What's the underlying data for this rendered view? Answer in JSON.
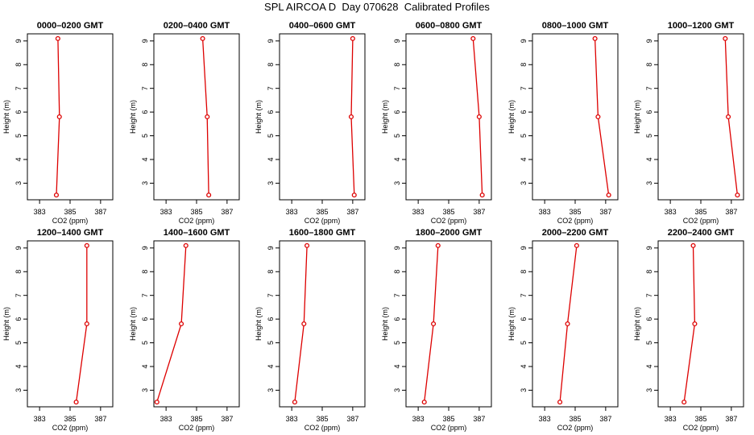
{
  "figure": {
    "title": "SPL AIRCOA D  Day 070628  Calibrated Profiles"
  },
  "colors": {
    "profile": "#dd0000",
    "axes": "#000000"
  },
  "chart_data": [
    {
      "type": "line",
      "title": "0000–0200 GMT",
      "xlabel": "CO2 (ppm)",
      "ylabel": "Height (m)",
      "xlim": [
        382.2,
        387.8
      ],
      "ylim": [
        2.3,
        9.3
      ],
      "xticks": [
        383,
        385,
        387
      ],
      "yticks": [
        3,
        4,
        5,
        6,
        7,
        8,
        9
      ],
      "series": [
        {
          "x": [
            384.1,
            384.3,
            384.2
          ],
          "y": [
            2.5,
            5.8,
            9.1
          ]
        }
      ]
    },
    {
      "type": "line",
      "title": "0200–0400 GMT",
      "xlabel": "CO2 (ppm)",
      "ylabel": "Height (m)",
      "xlim": [
        382.2,
        387.8
      ],
      "ylim": [
        2.3,
        9.3
      ],
      "xticks": [
        383,
        385,
        387
      ],
      "yticks": [
        3,
        4,
        5,
        6,
        7,
        8,
        9
      ],
      "series": [
        {
          "x": [
            385.8,
            385.7,
            385.4
          ],
          "y": [
            2.5,
            5.8,
            9.1
          ]
        }
      ]
    },
    {
      "type": "line",
      "title": "0400–0600 GMT",
      "xlabel": "CO2 (ppm)",
      "ylabel": "Height (m)",
      "xlim": [
        382.2,
        387.8
      ],
      "ylim": [
        2.3,
        9.3
      ],
      "xticks": [
        383,
        385,
        387
      ],
      "yticks": [
        3,
        4,
        5,
        6,
        7,
        8,
        9
      ],
      "series": [
        {
          "x": [
            387.1,
            386.9,
            387.0
          ],
          "y": [
            2.5,
            5.8,
            9.1
          ]
        }
      ]
    },
    {
      "type": "line",
      "title": "0600–0800 GMT",
      "xlabel": "CO2 (ppm)",
      "ylabel": "Height (m)",
      "xlim": [
        382.2,
        387.8
      ],
      "ylim": [
        2.3,
        9.3
      ],
      "xticks": [
        383,
        385,
        387
      ],
      "yticks": [
        3,
        4,
        5,
        6,
        7,
        8,
        9
      ],
      "series": [
        {
          "x": [
            387.2,
            387.0,
            386.6
          ],
          "y": [
            2.5,
            5.8,
            9.1
          ]
        }
      ]
    },
    {
      "type": "line",
      "title": "0800–1000 GMT",
      "xlabel": "CO2 (ppm)",
      "ylabel": "Height (m)",
      "xlim": [
        382.2,
        387.8
      ],
      "ylim": [
        2.3,
        9.3
      ],
      "xticks": [
        383,
        385,
        387
      ],
      "yticks": [
        3,
        4,
        5,
        6,
        7,
        8,
        9
      ],
      "series": [
        {
          "x": [
            387.2,
            386.5,
            386.3
          ],
          "y": [
            2.5,
            5.8,
            9.1
          ]
        }
      ]
    },
    {
      "type": "line",
      "title": "1000–1200 GMT",
      "xlabel": "CO2 (ppm)",
      "ylabel": "Height (m)",
      "xlim": [
        382.2,
        387.8
      ],
      "ylim": [
        2.3,
        9.3
      ],
      "xticks": [
        383,
        385,
        387
      ],
      "yticks": [
        3,
        4,
        5,
        6,
        7,
        8,
        9
      ],
      "series": [
        {
          "x": [
            387.4,
            386.8,
            386.6
          ],
          "y": [
            2.5,
            5.8,
            9.1
          ]
        }
      ]
    },
    {
      "type": "line",
      "title": "1200–1400 GMT",
      "xlabel": "CO2 (ppm)",
      "ylabel": "Height (m)",
      "xlim": [
        382.2,
        387.8
      ],
      "ylim": [
        2.3,
        9.3
      ],
      "xticks": [
        383,
        385,
        387
      ],
      "yticks": [
        3,
        4,
        5,
        6,
        7,
        8,
        9
      ],
      "series": [
        {
          "x": [
            385.4,
            386.1,
            386.1
          ],
          "y": [
            2.5,
            5.8,
            9.1
          ]
        }
      ]
    },
    {
      "type": "line",
      "title": "1400–1600 GMT",
      "xlabel": "CO2 (ppm)",
      "ylabel": "Height (m)",
      "xlim": [
        382.2,
        387.8
      ],
      "ylim": [
        2.3,
        9.3
      ],
      "xticks": [
        383,
        385,
        387
      ],
      "yticks": [
        3,
        4,
        5,
        6,
        7,
        8,
        9
      ],
      "series": [
        {
          "x": [
            382.4,
            384.0,
            384.3
          ],
          "y": [
            2.5,
            5.8,
            9.1
          ]
        }
      ]
    },
    {
      "type": "line",
      "title": "1600–1800 GMT",
      "xlabel": "CO2 (ppm)",
      "ylabel": "Height (m)",
      "xlim": [
        382.2,
        387.8
      ],
      "ylim": [
        2.3,
        9.3
      ],
      "xticks": [
        383,
        385,
        387
      ],
      "yticks": [
        3,
        4,
        5,
        6,
        7,
        8,
        9
      ],
      "series": [
        {
          "x": [
            383.2,
            383.8,
            384.0
          ],
          "y": [
            2.5,
            5.8,
            9.1
          ]
        }
      ]
    },
    {
      "type": "line",
      "title": "1800–2000 GMT",
      "xlabel": "CO2 (ppm)",
      "ylabel": "Height (m)",
      "xlim": [
        382.2,
        387.8
      ],
      "ylim": [
        2.3,
        9.3
      ],
      "xticks": [
        383,
        385,
        387
      ],
      "yticks": [
        3,
        4,
        5,
        6,
        7,
        8,
        9
      ],
      "series": [
        {
          "x": [
            383.4,
            384.0,
            384.3
          ],
          "y": [
            2.5,
            5.8,
            9.1
          ]
        }
      ]
    },
    {
      "type": "line",
      "title": "2000–2200 GMT",
      "xlabel": "CO2 (ppm)",
      "ylabel": "Height (m)",
      "xlim": [
        382.2,
        387.8
      ],
      "ylim": [
        2.3,
        9.3
      ],
      "xticks": [
        383,
        385,
        387
      ],
      "yticks": [
        3,
        4,
        5,
        6,
        7,
        8,
        9
      ],
      "series": [
        {
          "x": [
            384.0,
            384.5,
            385.1
          ],
          "y": [
            2.5,
            5.8,
            9.1
          ]
        }
      ]
    },
    {
      "type": "line",
      "title": "2200–2400 GMT",
      "xlabel": "CO2 (ppm)",
      "ylabel": "Height (m)",
      "xlim": [
        382.2,
        387.8
      ],
      "ylim": [
        2.3,
        9.3
      ],
      "xticks": [
        383,
        385,
        387
      ],
      "yticks": [
        3,
        4,
        5,
        6,
        7,
        8,
        9
      ],
      "series": [
        {
          "x": [
            383.9,
            384.6,
            384.5
          ],
          "y": [
            2.5,
            5.8,
            9.1
          ]
        }
      ]
    }
  ]
}
